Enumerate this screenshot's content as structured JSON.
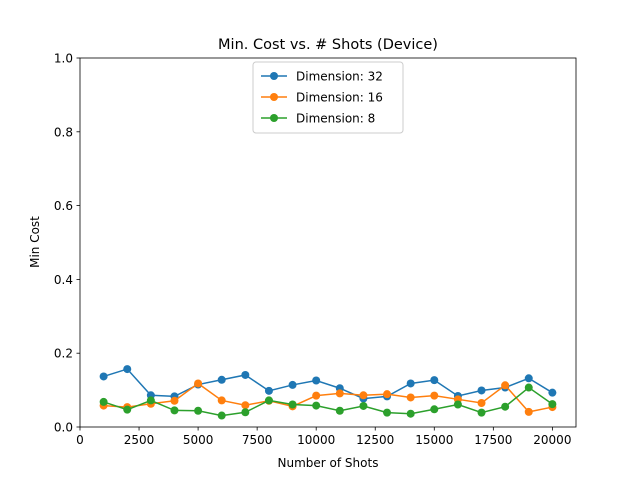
{
  "chart_data": {
    "type": "line",
    "title": "Min. Cost vs. # Shots (Device)",
    "xlabel": "Number of Shots",
    "ylabel": "Min Cost",
    "xlim": [
      0,
      21000
    ],
    "ylim": [
      0,
      1.0
    ],
    "xticks": [
      0,
      2500,
      5000,
      7500,
      10000,
      12500,
      15000,
      17500,
      20000
    ],
    "xtick_labels": [
      "0",
      "2500",
      "5000",
      "7500",
      "10000",
      "12500",
      "15000",
      "17500",
      "20000"
    ],
    "yticks": [
      0.0,
      0.2,
      0.4,
      0.6,
      0.8,
      1.0
    ],
    "ytick_labels": [
      "0.0",
      "0.2",
      "0.4",
      "0.6",
      "0.8",
      "1.0"
    ],
    "grid": false,
    "legend_position": "top-center",
    "x": [
      1000,
      2000,
      3000,
      4000,
      5000,
      6000,
      7000,
      8000,
      9000,
      10000,
      11000,
      12000,
      13000,
      14000,
      15000,
      16000,
      17000,
      18000,
      19000,
      20000
    ],
    "series": [
      {
        "name": "Dimension: 32",
        "color": "#1f77b4",
        "values": [
          0.137,
          0.157,
          0.086,
          0.083,
          0.115,
          0.128,
          0.141,
          0.098,
          0.114,
          0.126,
          0.105,
          0.077,
          0.083,
          0.118,
          0.127,
          0.084,
          0.099,
          0.107,
          0.132,
          0.093
        ]
      },
      {
        "name": "Dimension: 16",
        "color": "#ff7f0e",
        "values": [
          0.058,
          0.054,
          0.063,
          0.071,
          0.118,
          0.072,
          0.059,
          0.071,
          0.056,
          0.085,
          0.091,
          0.086,
          0.089,
          0.08,
          0.085,
          0.075,
          0.065,
          0.113,
          0.041,
          0.054
        ]
      },
      {
        "name": "Dimension: 8",
        "color": "#2ca02c",
        "values": [
          0.068,
          0.047,
          0.072,
          0.045,
          0.044,
          0.031,
          0.04,
          0.072,
          0.061,
          0.058,
          0.044,
          0.057,
          0.039,
          0.036,
          0.048,
          0.061,
          0.039,
          0.055,
          0.107,
          0.062
        ]
      }
    ]
  }
}
